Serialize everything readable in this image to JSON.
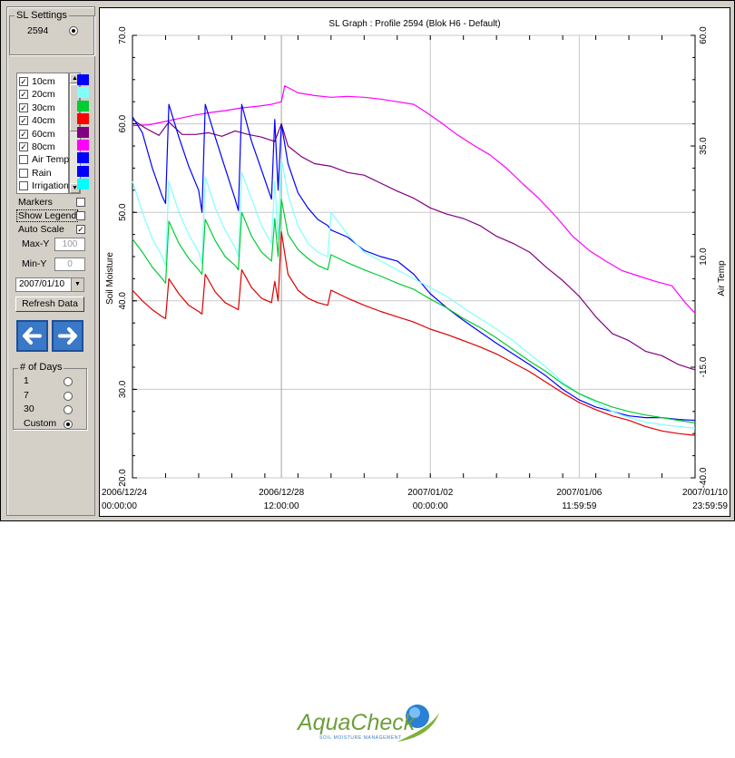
{
  "settings": {
    "legend": "SL Settings",
    "profile_id": "2594",
    "series": [
      {
        "label": "10cm",
        "checked": true,
        "color": "#0000ff"
      },
      {
        "label": "20cm",
        "checked": true,
        "color": "#80ffff"
      },
      {
        "label": "30cm",
        "checked": true,
        "color": "#00cc33"
      },
      {
        "label": "40cm",
        "checked": true,
        "color": "#ff0000"
      },
      {
        "label": "60cm",
        "checked": true,
        "color": "#800080"
      },
      {
        "label": "80cm",
        "checked": true,
        "color": "#ff00ff"
      },
      {
        "label": "Air Temp",
        "checked": false,
        "color": "#0000ff"
      },
      {
        "label": "Rain",
        "checked": false,
        "color": "#0000ff"
      },
      {
        "label": "Irrigation",
        "checked": false,
        "color": "#00ffff"
      }
    ],
    "markers_label": "Markers",
    "markers_checked": false,
    "show_legend_label": "Show Legend",
    "show_legend_checked": false,
    "auto_scale_label": "Auto Scale",
    "auto_scale_checked": true,
    "max_y_label": "Max-Y",
    "max_y_value": "100",
    "min_y_label": "Min-Y",
    "min_y_value": "0",
    "date_value": "2007/01/10",
    "refresh_label": "Refresh Data",
    "days_legend": "# of Days",
    "days_options": [
      {
        "label": "1",
        "selected": false
      },
      {
        "label": "7",
        "selected": false
      },
      {
        "label": "30",
        "selected": false
      },
      {
        "label": "Custom",
        "selected": true
      }
    ]
  },
  "chart_data": {
    "type": "line",
    "title": "SL Graph : Profile 2594 (Blok H6 - Default)",
    "ylabel": "Soil Moisture",
    "y2label": "Air Temp",
    "ylim": [
      20,
      70
    ],
    "y2lim": [
      -40,
      60
    ],
    "yticks": [
      "20.0",
      "30.0",
      "40.0",
      "50.0",
      "60.0",
      "70.0"
    ],
    "y2ticks": [
      "-40.0",
      "-15.0",
      "10.0",
      "35.0",
      "60.0"
    ],
    "xlim": [
      0,
      17
    ],
    "xticks": [
      {
        "x": 0,
        "date": "2006/12/24",
        "time": "00:00:00"
      },
      {
        "x": 4.5,
        "date": "2006/12/28",
        "time": "12:00:00"
      },
      {
        "x": 9,
        "date": "2007/01/02",
        "time": "00:00:00"
      },
      {
        "x": 13.5,
        "date": "2007/01/06",
        "time": "11:59:59"
      },
      {
        "x": 17,
        "date": "2007/01/10",
        "time": "23:59:59"
      }
    ],
    "grid": true,
    "cursor_x": 4.5,
    "series": [
      {
        "name": "80cm",
        "color": "#ff00ff",
        "x": [
          0,
          0.5,
          0.9,
          1.4,
          1.9,
          2.4,
          2.8,
          3.3,
          3.8,
          4.2,
          4.5,
          4.6,
          5,
          5.5,
          6,
          6.5,
          7,
          7.5,
          8,
          8.5,
          8.8,
          9.3,
          9.8,
          10.3,
          10.8,
          11.3,
          11.8,
          12.3,
          12.8,
          13.3,
          13.8,
          14.3,
          14.8,
          15.3,
          15.8,
          16.3,
          16.7,
          17
        ],
        "y": [
          59.8,
          59.9,
          60.2,
          60.6,
          61,
          61.3,
          61.5,
          61.8,
          62,
          62.2,
          62.5,
          64.3,
          63.5,
          63.2,
          63,
          63.1,
          63,
          62.8,
          62.5,
          62.2,
          61.5,
          60.2,
          58.8,
          57.6,
          56.5,
          55,
          53.2,
          51.5,
          49.5,
          47.3,
          45.7,
          44.5,
          43.4,
          42.8,
          42.2,
          41.7,
          39.8,
          38.6
        ]
      },
      {
        "name": "60cm",
        "color": "#800080",
        "x": [
          0,
          0.4,
          0.8,
          1.1,
          1.5,
          1.9,
          2.3,
          2.7,
          3.1,
          3.5,
          3.9,
          4.3,
          4.5,
          4.7,
          5.1,
          5.5,
          6,
          6.5,
          7,
          7.5,
          8,
          8.5,
          9,
          9.5,
          10,
          10.5,
          11,
          11.5,
          12,
          12.5,
          13,
          13.5,
          14,
          14.5,
          15,
          15.5,
          16,
          16.5,
          17
        ],
        "y": [
          60.5,
          59.5,
          58.7,
          60.2,
          58.8,
          58.8,
          59,
          58.6,
          59.2,
          58.8,
          58.5,
          58,
          60,
          57.5,
          56.3,
          55.5,
          55.2,
          54.5,
          54.2,
          53.3,
          52.4,
          51.6,
          50.5,
          49.8,
          49.3,
          48.5,
          47.3,
          46.5,
          45.5,
          43.8,
          42.3,
          40.5,
          38.2,
          36.3,
          35.5,
          34.3,
          33.8,
          32.8,
          32.2
        ]
      },
      {
        "name": "10cm",
        "color": "#0000ff",
        "x": [
          0,
          0.3,
          0.6,
          0.9,
          1,
          1.1,
          1.4,
          1.7,
          2,
          2.1,
          2.2,
          2.5,
          2.8,
          3.1,
          3.2,
          3.3,
          3.6,
          3.9,
          4.2,
          4.3,
          4.4,
          4.5,
          4.7,
          5,
          5.3,
          5.6,
          5.9,
          6,
          6.5,
          7,
          7.5,
          8,
          8.5,
          9,
          9.5,
          10,
          10.5,
          11,
          11.5,
          12,
          12.5,
          13,
          13.5,
          14,
          14.5,
          15,
          15.5,
          16,
          16.5,
          17
        ],
        "y": [
          60.8,
          59,
          55,
          51.8,
          51,
          62.2,
          58.5,
          55.2,
          52.5,
          50,
          62.2,
          58.5,
          55,
          51.5,
          50.2,
          62.2,
          58,
          54.8,
          51.5,
          60.5,
          52.5,
          60,
          55.5,
          52.2,
          50.5,
          49.2,
          48.5,
          48,
          47.2,
          45.7,
          45,
          44.5,
          43,
          40.8,
          39.2,
          37.8,
          36.5,
          35.2,
          34,
          32.8,
          31.5,
          30,
          28.8,
          28,
          27.5,
          27,
          26.8,
          26.8,
          26.6,
          26.5
        ]
      },
      {
        "name": "20cm",
        "color": "#80ffff",
        "x": [
          0,
          0.3,
          0.6,
          0.9,
          1,
          1.1,
          1.4,
          1.7,
          2,
          2.1,
          2.2,
          2.5,
          2.8,
          3.1,
          3.2,
          3.3,
          3.6,
          3.9,
          4.2,
          4.3,
          4.4,
          4.5,
          4.7,
          5,
          5.3,
          5.6,
          5.9,
          6,
          6.5,
          7,
          7.5,
          8,
          8.5,
          9,
          9.5,
          10,
          10.5,
          11,
          11.5,
          12,
          12.5,
          13,
          13.5,
          14,
          14.5,
          15,
          15.5,
          16,
          16.5,
          17
        ],
        "y": [
          53.5,
          50,
          47,
          45,
          44,
          53.5,
          50,
          47.5,
          45.5,
          44.2,
          54,
          50.5,
          48,
          46,
          45,
          54.5,
          51.5,
          48.5,
          46.5,
          53.5,
          47,
          56,
          52,
          48.5,
          46.5,
          45.5,
          45,
          50,
          47.5,
          45.5,
          44.5,
          43.5,
          42.5,
          41.5,
          40.5,
          39.2,
          38,
          36.8,
          35.5,
          34,
          32.5,
          30.8,
          29.5,
          28.5,
          27.5,
          26.8,
          26.3,
          26,
          25.8,
          25.6
        ]
      },
      {
        "name": "30cm",
        "color": "#00cc33",
        "x": [
          0,
          0.3,
          0.6,
          0.9,
          1,
          1.1,
          1.4,
          1.7,
          2,
          2.1,
          2.2,
          2.5,
          2.8,
          3.1,
          3.2,
          3.3,
          3.6,
          3.9,
          4.2,
          4.3,
          4.4,
          4.5,
          4.7,
          5,
          5.3,
          5.6,
          5.9,
          6,
          6.5,
          7,
          7.5,
          8,
          8.5,
          9,
          9.5,
          10,
          10.5,
          11,
          11.5,
          12,
          12.5,
          13,
          13.5,
          14,
          14.5,
          15,
          15.5,
          16,
          16.5,
          17
        ],
        "y": [
          47,
          45.5,
          43.8,
          42.5,
          42,
          49,
          46.5,
          44.8,
          43.5,
          43,
          49.2,
          46.8,
          45,
          44,
          43.5,
          50,
          47.3,
          45.5,
          44.5,
          49.3,
          45,
          51.5,
          47.5,
          45.8,
          44.8,
          44,
          43.5,
          45.2,
          44.3,
          43.5,
          42.8,
          42,
          41.3,
          40.2,
          39.2,
          38,
          37,
          35.8,
          34.5,
          33.2,
          32,
          30.6,
          29.5,
          28.7,
          28,
          27.5,
          27.1,
          26.8,
          26.5,
          26.2
        ]
      },
      {
        "name": "40cm",
        "color": "#dd0000",
        "x": [
          0,
          0.3,
          0.6,
          0.9,
          1,
          1.1,
          1.4,
          1.7,
          2,
          2.1,
          2.2,
          2.5,
          2.8,
          3.1,
          3.2,
          3.3,
          3.6,
          3.9,
          4.2,
          4.3,
          4.4,
          4.5,
          4.7,
          5,
          5.3,
          5.6,
          5.9,
          6,
          6.5,
          7,
          7.5,
          8,
          8.5,
          9,
          9.5,
          10,
          10.5,
          11,
          11.5,
          12,
          12.5,
          13,
          13.5,
          14,
          14.5,
          15,
          15.5,
          16,
          16.5,
          17
        ],
        "y": [
          41.2,
          40,
          39,
          38.2,
          38,
          42.5,
          40.8,
          39.5,
          38.8,
          38.5,
          43,
          41,
          39.8,
          39.2,
          39,
          43.5,
          41.5,
          40.3,
          39.8,
          42.2,
          40,
          47.8,
          43,
          41.2,
          40.3,
          39.8,
          39.5,
          41.2,
          40.3,
          39.5,
          38.8,
          38.2,
          37.6,
          36.8,
          36.2,
          35.5,
          34.8,
          34,
          33,
          32,
          30.8,
          29.6,
          28.5,
          27.7,
          27,
          26.5,
          25.8,
          25.3,
          25,
          24.8
        ]
      }
    ]
  }
}
